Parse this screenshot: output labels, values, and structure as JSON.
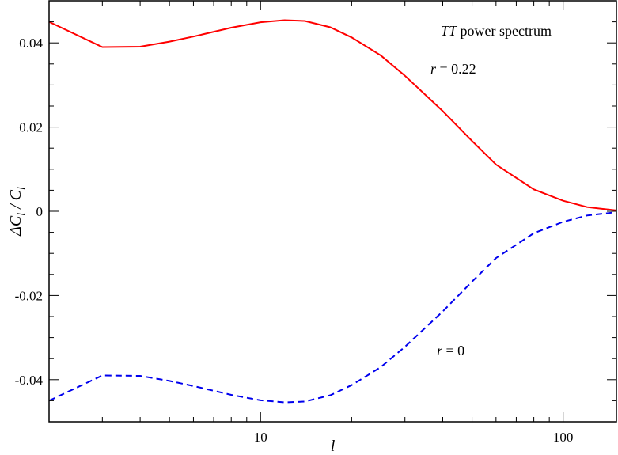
{
  "chart_data": {
    "type": "line",
    "x_scale": "log",
    "xlim": [
      2,
      150
    ],
    "ylim": [
      -0.05,
      0.05
    ],
    "xlabel": "l",
    "ylabel": "ΔC_l / C_l",
    "x_ticks": [
      10,
      100
    ],
    "x_tick_labels": [
      "10",
      "100"
    ],
    "y_ticks": [
      -0.04,
      -0.02,
      0,
      0.02,
      0.04
    ],
    "y_tick_labels": [
      "-0.04",
      "-0.02",
      "0",
      "0.02",
      "0.04"
    ],
    "grid": false,
    "annotations": {
      "title_italic": "TT",
      "title_rest": " power spectrum",
      "label_r022_var": "r",
      "label_r022_val": " = 0.22",
      "label_r0_var": "r",
      "label_r0_val": " = 0"
    },
    "series": [
      {
        "name": "r = 0.22",
        "color": "#ff0000",
        "dash": "solid",
        "x": [
          2,
          3,
          4,
          5,
          6,
          8,
          10,
          12,
          14,
          17,
          20,
          25,
          30,
          40,
          50,
          60,
          80,
          100,
          120,
          150
        ],
        "y": [
          0.045,
          0.039,
          0.0391,
          0.0403,
          0.0415,
          0.0436,
          0.0449,
          0.0454,
          0.0452,
          0.0437,
          0.0413,
          0.037,
          0.0322,
          0.0238,
          0.0167,
          0.0111,
          0.0052,
          0.0025,
          0.001,
          0.0002
        ]
      },
      {
        "name": "r = 0",
        "color": "#0000ee",
        "dash": "dashed",
        "x": [
          2,
          3,
          4,
          5,
          6,
          8,
          10,
          12,
          14,
          17,
          20,
          25,
          30,
          40,
          50,
          60,
          80,
          100,
          120,
          150
        ],
        "y": [
          -0.045,
          -0.039,
          -0.0391,
          -0.0403,
          -0.0415,
          -0.0436,
          -0.0449,
          -0.0454,
          -0.0452,
          -0.0437,
          -0.0413,
          -0.037,
          -0.0322,
          -0.0238,
          -0.0167,
          -0.0111,
          -0.0052,
          -0.0025,
          -0.001,
          -0.0002
        ]
      }
    ]
  }
}
